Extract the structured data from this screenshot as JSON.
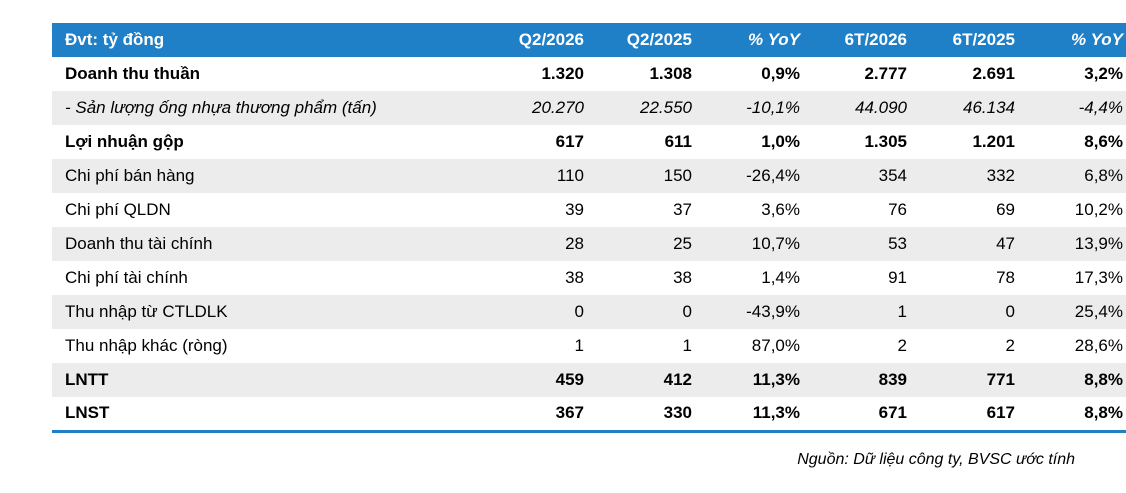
{
  "table": {
    "headers": [
      "Đvt: tỷ đồng",
      "Q2/2026",
      "Q2/2025",
      "% YoY",
      "6T/2026",
      "6T/2025",
      "% YoY"
    ],
    "rows": [
      {
        "style": "bold",
        "cells": [
          "Doanh thu thuần",
          "1.320",
          "1.308",
          "0,9%",
          "2.777",
          "2.691",
          "3,2%"
        ]
      },
      {
        "style": "italic",
        "cells": [
          "- Sản lượng ống nhựa thương phẩm (tấn)",
          "20.270",
          "22.550",
          "-10,1%",
          "44.090",
          "46.134",
          "-4,4%"
        ]
      },
      {
        "style": "bold",
        "cells": [
          "Lợi nhuận gộp",
          "617",
          "611",
          "1,0%",
          "1.305",
          "1.201",
          "8,6%"
        ]
      },
      {
        "style": "normal",
        "cells": [
          "Chi phí bán hàng",
          "110",
          "150",
          "-26,4%",
          "354",
          "332",
          "6,8%"
        ]
      },
      {
        "style": "normal",
        "cells": [
          "Chi phí QLDN",
          "39",
          "37",
          "3,6%",
          "76",
          "69",
          "10,2%"
        ]
      },
      {
        "style": "normal",
        "cells": [
          "Doanh thu tài chính",
          "28",
          "25",
          "10,7%",
          "53",
          "47",
          "13,9%"
        ]
      },
      {
        "style": "normal",
        "cells": [
          "Chi phí tài chính",
          "38",
          "38",
          "1,4%",
          "91",
          "78",
          "17,3%"
        ]
      },
      {
        "style": "normal",
        "cells": [
          "Thu nhập từ CTLDLK",
          "0",
          "0",
          "-43,9%",
          "1",
          "0",
          "25,4%"
        ]
      },
      {
        "style": "normal",
        "cells": [
          "Thu nhập khác (ròng)",
          "1",
          "1",
          "87,0%",
          "2",
          "2",
          "28,6%"
        ]
      },
      {
        "style": "bold",
        "cells": [
          "LNTT",
          "459",
          "412",
          "11,3%",
          "839",
          "771",
          "8,8%"
        ]
      },
      {
        "style": "bold",
        "cells": [
          "LNST",
          "367",
          "330",
          "11,3%",
          "671",
          "617",
          "8,8%"
        ]
      }
    ]
  },
  "source": "Nguồn: Dữ liệu công ty, BVSC ước tính",
  "colors": {
    "header_bg": "#1f7fc7",
    "stripe_bg": "#ececec"
  }
}
